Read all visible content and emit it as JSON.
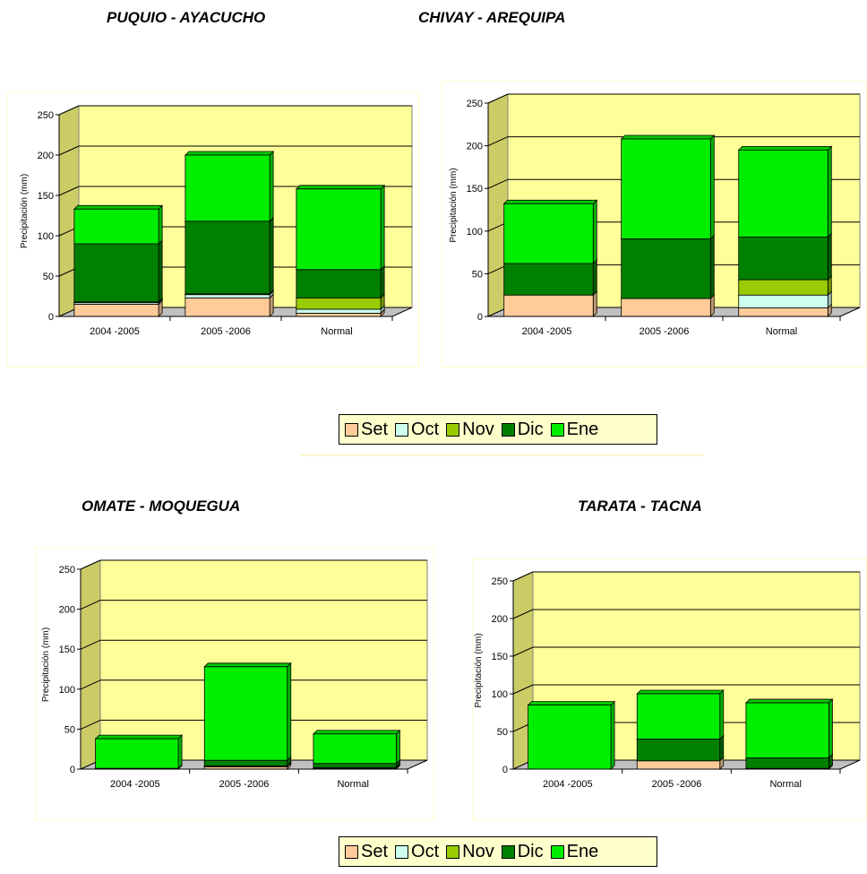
{
  "colors": {
    "Set": "#ffcc99",
    "Oct": "#ccffee",
    "Nov": "#99cc00",
    "Dic": "#008000",
    "Ene": "#00ee00",
    "plot_bg": "#ffff99",
    "panel_bg": "#ffffff",
    "frame": "#ffffcc"
  },
  "legend": {
    "items": [
      "Set",
      "Oct",
      "Nov",
      "Dic",
      "Ene"
    ]
  },
  "chart_data": [
    {
      "type": "bar",
      "stacked": true,
      "title": "PUQUIO - AYACUCHO",
      "ylabel": "Precipitación (mm)",
      "ylim": [
        0,
        250
      ],
      "yticks": [
        "0",
        "50",
        "100",
        "150",
        "200",
        "250"
      ],
      "categories": [
        "2004 -2005",
        "2005 -2006",
        "Normal"
      ],
      "series": [
        {
          "name": "Set",
          "values": [
            15,
            23,
            4
          ]
        },
        {
          "name": "Oct",
          "values": [
            2,
            4,
            5
          ]
        },
        {
          "name": "Nov",
          "values": [
            1,
            1,
            14
          ]
        },
        {
          "name": "Dic",
          "values": [
            72,
            90,
            35
          ]
        },
        {
          "name": "Ene",
          "values": [
            43,
            82,
            100
          ]
        }
      ]
    },
    {
      "type": "bar",
      "stacked": true,
      "title": "CHIVAY - AREQUIPA",
      "ylabel": "Precipitación (mm)",
      "ylim": [
        0,
        250
      ],
      "yticks": [
        "0",
        "50",
        "100",
        "150",
        "200",
        "250"
      ],
      "categories": [
        "2004 -2005",
        "2005 -2006",
        "Normal"
      ],
      "series": [
        {
          "name": "Set",
          "values": [
            25,
            21,
            10
          ]
        },
        {
          "name": "Oct",
          "values": [
            0,
            0,
            15
          ]
        },
        {
          "name": "Nov",
          "values": [
            0,
            0,
            18
          ]
        },
        {
          "name": "Dic",
          "values": [
            37,
            70,
            50
          ]
        },
        {
          "name": "Ene",
          "values": [
            70,
            117,
            102
          ]
        }
      ]
    },
    {
      "type": "bar",
      "stacked": true,
      "title": "OMATE - MOQUEGUA",
      "ylabel": "Precipitación (mm)",
      "ylim": [
        0,
        250
      ],
      "yticks": [
        "0",
        "50",
        "100",
        "150",
        "200",
        "250"
      ],
      "categories": [
        "2004 -2005",
        "2005 -2006",
        "Normal"
      ],
      "series": [
        {
          "name": "Set",
          "values": [
            0,
            3,
            1
          ]
        },
        {
          "name": "Oct",
          "values": [
            0,
            1,
            1
          ]
        },
        {
          "name": "Nov",
          "values": [
            0,
            0,
            0
          ]
        },
        {
          "name": "Dic",
          "values": [
            1,
            7,
            5
          ]
        },
        {
          "name": "Ene",
          "values": [
            37,
            117,
            37
          ]
        }
      ]
    },
    {
      "type": "bar",
      "stacked": true,
      "title": "TARATA - TACNA",
      "ylabel": "Precipitación (mm)",
      "ylim": [
        0,
        250
      ],
      "yticks": [
        "0",
        "50",
        "100",
        "150",
        "200",
        "250"
      ],
      "categories": [
        "2004 -2005",
        "2005 -2006",
        "Normal"
      ],
      "series": [
        {
          "name": "Set",
          "values": [
            0,
            11,
            0
          ]
        },
        {
          "name": "Oct",
          "values": [
            0,
            0,
            0
          ]
        },
        {
          "name": "Nov",
          "values": [
            0,
            0,
            1
          ]
        },
        {
          "name": "Dic",
          "values": [
            0,
            29,
            14
          ]
        },
        {
          "name": "Ene",
          "values": [
            85,
            60,
            73
          ]
        }
      ]
    }
  ]
}
